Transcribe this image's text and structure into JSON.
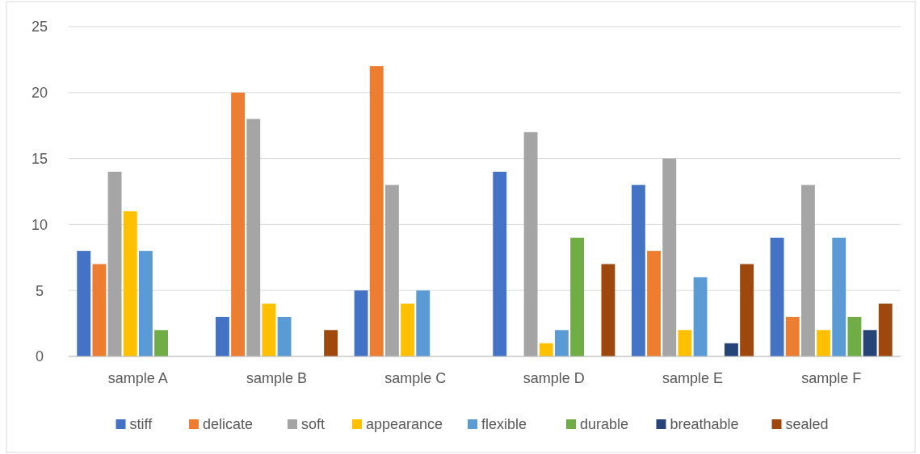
{
  "chart_data": {
    "type": "bar",
    "categories": [
      "sample A",
      "sample B",
      "sample C",
      "sample D",
      "sample E",
      "sample F"
    ],
    "series": [
      {
        "name": "stiff",
        "color": "#4472c4",
        "values": [
          8,
          3,
          5,
          14,
          13,
          9
        ]
      },
      {
        "name": "delicate",
        "color": "#ed7d31",
        "values": [
          7,
          20,
          22,
          0,
          8,
          3
        ]
      },
      {
        "name": "soft",
        "color": "#a5a5a5",
        "values": [
          14,
          18,
          13,
          17,
          15,
          13
        ]
      },
      {
        "name": "appearance",
        "color": "#ffc000",
        "values": [
          11,
          4,
          4,
          1,
          2,
          2
        ]
      },
      {
        "name": "flexible",
        "color": "#5b9bd5",
        "values": [
          8,
          3,
          5,
          2,
          6,
          9
        ]
      },
      {
        "name": "durable",
        "color": "#70ad47",
        "values": [
          2,
          0,
          0,
          9,
          0,
          3
        ]
      },
      {
        "name": "breathable",
        "color": "#264478",
        "values": [
          0,
          0,
          0,
          0,
          1,
          2
        ]
      },
      {
        "name": "sealed",
        "color": "#9e480e",
        "values": [
          0,
          2,
          0,
          7,
          7,
          4
        ]
      }
    ],
    "ylim": [
      0,
      25
    ],
    "yticks": [
      0,
      5,
      10,
      15,
      20,
      25
    ],
    "grid": "y",
    "legend": "bottom"
  }
}
